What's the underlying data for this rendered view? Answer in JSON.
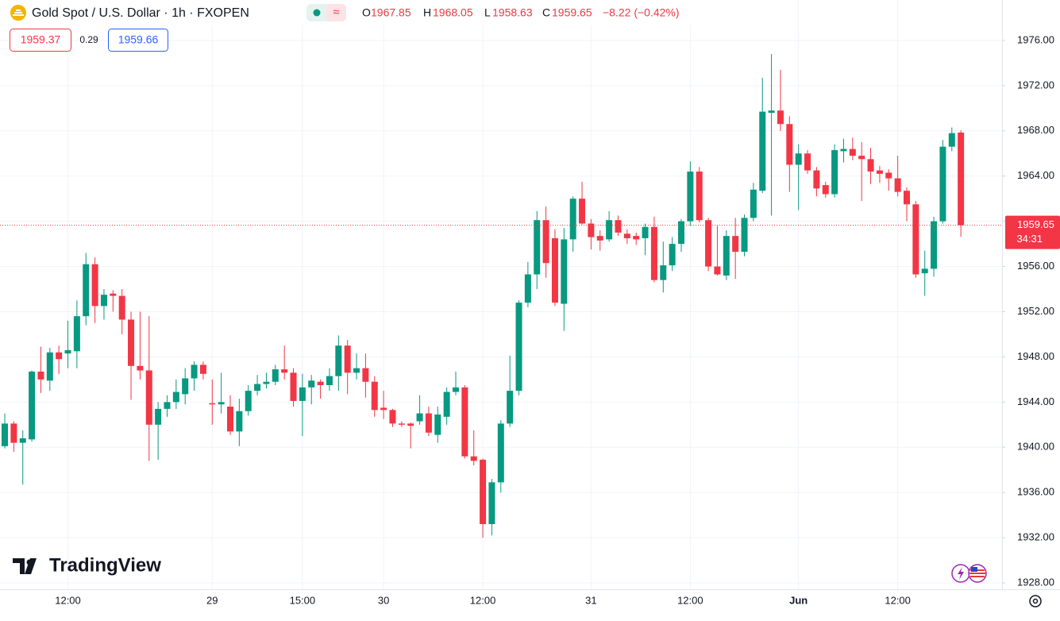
{
  "header": {
    "title": "Gold Spot / U.S. Dollar · 1h · FXOPEN",
    "ohlc_labels": [
      "O",
      "H",
      "L",
      "C"
    ],
    "change": "−8.22 (−0.42%)",
    "sell": "1959.37",
    "spread": "0.29",
    "buy": "1959.66",
    "countdown": "34:31",
    "logo": "TradingView"
  },
  "chart_data": {
    "type": "candlestick",
    "up_color": "#089981",
    "down_color": "#f23645",
    "grid": true,
    "categories": [
      null,
      null,
      null,
      null,
      null,
      null,
      null,
      "12:00",
      null,
      null,
      null,
      null,
      null,
      null,
      null,
      null,
      null,
      null,
      null,
      null,
      null,
      null,
      null,
      "29",
      null,
      null,
      null,
      null,
      null,
      null,
      null,
      null,
      null,
      "15:00",
      null,
      null,
      null,
      null,
      null,
      null,
      null,
      null,
      "30",
      null,
      null,
      null,
      null,
      null,
      null,
      null,
      null,
      null,
      null,
      "12:00",
      null,
      null,
      null,
      null,
      null,
      null,
      null,
      null,
      null,
      null,
      null,
      "31",
      null,
      null,
      null,
      null,
      null,
      null,
      null,
      null,
      null,
      null,
      "12:00",
      null,
      null,
      null,
      null,
      null,
      null,
      null,
      null,
      null,
      null,
      null,
      "Jun",
      null,
      null,
      null,
      null,
      null,
      null,
      null,
      null,
      null,
      null,
      "12:00",
      null,
      null,
      null,
      null,
      null,
      null,
      null
    ],
    "open": [
      1940.1,
      1942.1,
      1940.4,
      1940.7,
      1946.7,
      1945.9,
      1948.4,
      1948.3,
      1948.5,
      1951.6,
      1956.2,
      1952.5,
      1953.6,
      1953.4,
      1951.3,
      1947.2,
      1946.8,
      1942,
      1943.4,
      1944,
      1944.7,
      1946.1,
      1947.3,
      1943.9,
      1943.8,
      1943.6,
      1941.4,
      1943.2,
      1945,
      1945.6,
      1945.8,
      1946.9,
      1946.6,
      1944.1,
      1945.3,
      1945.8,
      1945.5,
      1946.3,
      1949,
      1946.6,
      1947,
      1945.8,
      1943.5,
      1943.3,
      1942.1,
      1942.1,
      1942.3,
      1943,
      1941.1,
      1942.7,
      1944.9,
      1945.3,
      1939.2,
      1938.9,
      1933.2,
      1936.9,
      1942.1,
      1945,
      1952.8,
      1955.3,
      1960.1,
      1958.5,
      1952.7,
      1958.4,
      1962,
      1959.8,
      1958.7,
      1958.4,
      1960.1,
      1958.9,
      1958.7,
      1958.5,
      1959.5,
      1954.8,
      1956.1,
      1958,
      1960,
      1964.4,
      1960.1,
      1956,
      1955.2,
      1958.7,
      1957.3,
      1960.3,
      1962.7,
      1969.6,
      1969.8,
      1968.6,
      1965,
      1966,
      1964.5,
      1963.2,
      1962.4,
      1966.2,
      1966.4,
      1965.8,
      1965.5,
      1964.5,
      1964.3,
      1963.8,
      1962.7,
      1961.5,
      1955.4,
      1955.8,
      1960,
      1966.6,
      1967.85
    ],
    "high": [
      1943,
      1942.3,
      1941.5,
      1946.8,
      1948.9,
      1948.8,
      1949,
      1951.2,
      1953,
      1957.2,
      1956.8,
      1954,
      1953.9,
      1954,
      1952,
      1952,
      1951.6,
      1944,
      1944.6,
      1946,
      1947,
      1947.6,
      1947.6,
      1946,
      1946.6,
      1944.6,
      1944.3,
      1945.5,
      1946.4,
      1946.6,
      1947.3,
      1949,
      1947,
      1946.5,
      1946.4,
      1946,
      1947,
      1949.9,
      1949.5,
      1948.3,
      1948.3,
      1946.3,
      1945,
      1943.4,
      1942.3,
      1942.2,
      1944.6,
      1943.6,
      1943.6,
      1945.3,
      1946.7,
      1945.5,
      1941.5,
      1939,
      1937.2,
      1942.4,
      1948.1,
      1953,
      1956.4,
      1960.9,
      1961.3,
      1959.3,
      1959.4,
      1962.2,
      1963.5,
      1960.2,
      1959.2,
      1960.9,
      1960.5,
      1959.3,
      1959,
      1959.8,
      1960.4,
      1958.2,
      1958.6,
      1960.2,
      1965.3,
      1964.8,
      1960.3,
      1959.6,
      1959.2,
      1960.3,
      1960.6,
      1963.4,
      1972.7,
      1974.8,
      1973.4,
      1969.3,
      1966.8,
      1966.3,
      1964.8,
      1963.5,
      1966.8,
      1967.3,
      1967.4,
      1967,
      1966.5,
      1964.9,
      1964.6,
      1965.8,
      1963,
      1961.8,
      1957.4,
      1960.4,
      1967.2,
      1968.3,
      1968.05
    ],
    "low": [
      1939.9,
      1939.6,
      1936.7,
      1940.5,
      1944.8,
      1945,
      1946.5,
      1947,
      1947,
      1950.8,
      1951,
      1951.3,
      1952,
      1950,
      1944.2,
      1946,
      1938.8,
      1938.9,
      1942.7,
      1943.4,
      1943.8,
      1945,
      1946,
      1942,
      1943,
      1941.1,
      1940.1,
      1942.8,
      1944.6,
      1945.2,
      1945.5,
      1946,
      1943.6,
      1941,
      1943.8,
      1944.3,
      1945,
      1945,
      1944.7,
      1946,
      1944.4,
      1942.7,
      1942.5,
      1941.8,
      1941.8,
      1939.9,
      1942,
      1941,
      1940.4,
      1942,
      1944.6,
      1939,
      1938.4,
      1932,
      1932.2,
      1936,
      1941.8,
      1944.6,
      1952.4,
      1954,
      1955,
      1952.5,
      1950.3,
      1957.3,
      1959.7,
      1957.5,
      1957.4,
      1958.2,
      1958.7,
      1958,
      1957.9,
      1957,
      1954.6,
      1953.7,
      1955.6,
      1957.3,
      1959.6,
      1959.9,
      1955.6,
      1955.2,
      1954.8,
      1954.9,
      1956.9,
      1960,
      1962.5,
      1960.5,
      1968,
      1962.6,
      1961,
      1964.2,
      1962.2,
      1962.1,
      1962.1,
      1965.2,
      1965.4,
      1961.8,
      1963.3,
      1963.4,
      1962.7,
      1962.2,
      1960,
      1955,
      1953.4,
      1955.1,
      1959.8,
      1966.2,
      1958.63
    ],
    "close": [
      1942.1,
      1940.4,
      1940.8,
      1946.7,
      1946,
      1948.4,
      1947.8,
      1948.6,
      1951.6,
      1956.2,
      1952.5,
      1953.5,
      1953.4,
      1951.3,
      1947.2,
      1946.8,
      1942,
      1943.4,
      1944,
      1944.9,
      1946.1,
      1947.3,
      1946.5,
      1943.8,
      1944,
      1941.4,
      1943.2,
      1945,
      1945.6,
      1945.8,
      1946.9,
      1946.6,
      1944.1,
      1945.3,
      1945.9,
      1945.5,
      1946.3,
      1949,
      1946.6,
      1947,
      1945.8,
      1943.3,
      1943.3,
      1942.1,
      1942,
      1941.9,
      1943,
      1941.3,
      1942.9,
      1944.9,
      1945.3,
      1939.2,
      1938.8,
      1933.2,
      1936.9,
      1942.1,
      1945,
      1952.8,
      1955.3,
      1960.1,
      1956.3,
      1952.8,
      1958.4,
      1962,
      1959.8,
      1958.6,
      1958.3,
      1960.1,
      1959,
      1958.5,
      1958.4,
      1959.5,
      1954.8,
      1956.1,
      1958,
      1960,
      1964.4,
      1960.1,
      1956,
      1955.3,
      1958.7,
      1957.3,
      1960.3,
      1962.8,
      1969.7,
      1969.8,
      1968.6,
      1965,
      1966,
      1964.5,
      1962.9,
      1962.4,
      1966.3,
      1966.4,
      1965.8,
      1965.5,
      1964.4,
      1964.2,
      1963.8,
      1962.6,
      1961.5,
      1955.3,
      1955.8,
      1960,
      1966.6,
      1967.8,
      1959.65
    ],
    "ylim": [
      1927.44,
      1979.58
    ],
    "yticks": [
      {
        "value": 1928,
        "label": "1928.00"
      },
      {
        "value": 1932,
        "label": "1932.00"
      },
      {
        "value": 1936,
        "label": "1936.00"
      },
      {
        "value": 1940,
        "label": "1940.00"
      },
      {
        "value": 1944,
        "label": "1944.00"
      },
      {
        "value": 1948,
        "label": "1948.00"
      },
      {
        "value": 1952,
        "label": "1952.00"
      },
      {
        "value": 1956,
        "label": "1956.00"
      },
      {
        "value": 1960,
        "label": "1960.00"
      },
      {
        "value": 1964,
        "label": "1964.00"
      },
      {
        "value": 1968,
        "label": "1968.00"
      },
      {
        "value": 1972,
        "label": "1972.00"
      },
      {
        "value": 1976,
        "label": "1976.00"
      }
    ]
  }
}
